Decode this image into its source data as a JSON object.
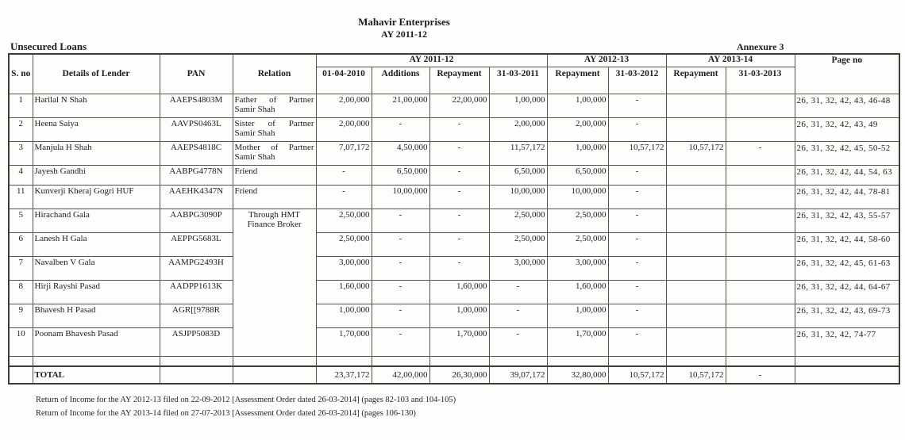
{
  "page": {
    "company": "Mahavir Enterprises",
    "assessment_year": "AY 2011-12",
    "section_title": "Unsecured Loans",
    "annexure": "Annexure 3"
  },
  "table": {
    "headers": {
      "s_no": "S. no",
      "lender": "Details of Lender",
      "pan": "PAN",
      "relation": "Relation",
      "page_no": "Page no",
      "groups": [
        {
          "label": "AY 2011-12",
          "cols": [
            "01-04-2010",
            "Additions",
            "Repayment",
            "31-03-2011"
          ]
        },
        {
          "label": "AY 2012-13",
          "cols": [
            "Repayment",
            "31-03-2012"
          ]
        },
        {
          "label": "AY 2013-14",
          "cols": [
            "Repayment",
            "31-03-2013"
          ]
        }
      ]
    },
    "rows": [
      {
        "s_no": "1",
        "lender": "Harilal N Shah",
        "pan": "AAEPS4803M",
        "relation": {
          "text": "Father of Partner Samir Shah"
        },
        "values": [
          "2,00,000",
          "21,00,000",
          "22,00,000",
          "1,00,000",
          "1,00,000",
          "-",
          "",
          ""
        ],
        "page_no": "26, 31, 32, 42, 43, 46-48"
      },
      {
        "s_no": "2",
        "lender": "Heena Saiya",
        "pan": "AAVPS0463L",
        "relation": {
          "text": "Sister of Partner Samir Shah"
        },
        "values": [
          "2,00,000",
          "-",
          "-",
          "2,00,000",
          "2,00,000",
          "-",
          "",
          ""
        ],
        "page_no": "26, 31, 32, 42, 43, 49"
      },
      {
        "s_no": "3",
        "lender": "Manjula H Shah",
        "pan": "AAEPS4818C",
        "relation": {
          "text": "Mother of Partner Samir Shah"
        },
        "values": [
          "7,07,172",
          "4,50,000",
          "-",
          "11,57,172",
          "1,00,000",
          "10,57,172",
          "10,57,172",
          "-"
        ],
        "page_no": "26, 31, 32, 42, 45, 50-52"
      },
      {
        "s_no": "4",
        "lender": "Jayesh Gandhi",
        "pan": "AABPG4778N",
        "relation": {
          "text": "Friend"
        },
        "values": [
          "-",
          "6,50,000",
          "-",
          "6,50,000",
          "6,50,000",
          "-",
          "",
          ""
        ],
        "page_no": "26, 31, 32, 42, 44, 54, 63"
      },
      {
        "s_no": "11",
        "lender": "Kunverji Kheraj Gogri HUF",
        "pan": "AAEHK4347N",
        "relation": {
          "text": "Friend"
        },
        "values": [
          "-",
          "10,00,000",
          "-",
          "10,00,000",
          "10,00,000",
          "-",
          "",
          ""
        ],
        "page_no": "26, 31, 32, 42, 44, 78-81"
      },
      {
        "s_no": "5",
        "lender": "Hirachand Gala",
        "pan": "AABPG3090P",
        "relation": {
          "text": "Through HMT Finance Broker",
          "rowspan": 6,
          "center": true
        },
        "values": [
          "2,50,000",
          "-",
          "-",
          "2,50,000",
          "2,50,000",
          "-",
          "",
          ""
        ],
        "page_no": "26, 31, 32, 42, 43, 55-57"
      },
      {
        "s_no": "6",
        "lender": "Lanesh H Gala",
        "pan": "AEPPG5683L",
        "relation": null,
        "values": [
          "2,50,000",
          "-",
          "-",
          "2,50,000",
          "2,50,000",
          "-",
          "",
          ""
        ],
        "page_no": "26, 31, 32, 42, 44, 58-60"
      },
      {
        "s_no": "7",
        "lender": "Navalben V Gala",
        "pan": "AAMPG2493H",
        "relation": null,
        "values": [
          "3,00,000",
          "-",
          "-",
          "3,00,000",
          "3,00,000",
          "-",
          "",
          ""
        ],
        "page_no": "26, 31, 32, 42, 45, 61-63"
      },
      {
        "s_no": "8",
        "lender": "Hirji Rayshi Pasad",
        "pan": "AADPP1613K",
        "relation": null,
        "values": [
          "1,60,000",
          "-",
          "1,60,000",
          "-",
          "1,60,000",
          "-",
          "",
          ""
        ],
        "page_no": "26, 31, 32, 42, 44, 64-67"
      },
      {
        "s_no": "9",
        "lender": "Bhavesh H Pasad",
        "pan": "AGR[[9788R",
        "relation": null,
        "values": [
          "1,00,000",
          "-",
          "1,00,000",
          "-",
          "1,00,000",
          "-",
          "",
          ""
        ],
        "page_no": "26, 31, 32, 42, 43, 69-73"
      },
      {
        "s_no": "10",
        "lender": "Poonam Bhavesh Pasad",
        "pan": "ASJPP5083D",
        "relation": null,
        "values": [
          "1,70,000",
          "-",
          "1,70,000",
          "-",
          "1,70,000",
          "-",
          "",
          ""
        ],
        "page_no": "26, 31, 32, 42, 74-77"
      }
    ],
    "total": {
      "label": "TOTAL",
      "values": [
        "23,37,172",
        "42,00,000",
        "26,30,000",
        "39,07,172",
        "32,80,000",
        "10,57,172",
        "10,57,172",
        "-"
      ],
      "page_no": ""
    }
  },
  "footnotes": [
    "Return of Income for the AY 2012-13 filed on 22-09-2012 [Assessment Order dated 26-03-2014] (pages 82-103 and 104-105)",
    "Return of Income for the AY 2013-14 filed on 27-07-2013 [Assessment Order dated 26-03-2014] (pages 106-130)"
  ]
}
